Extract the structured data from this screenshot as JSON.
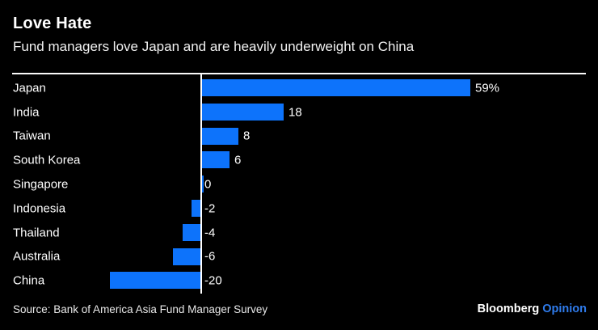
{
  "header": {
    "title": "Love Hate",
    "subtitle": "Fund managers love Japan and are heavily underweight on China"
  },
  "chart_data": {
    "type": "bar",
    "orientation": "horizontal",
    "title": "Love Hate",
    "subtitle": "Fund managers love Japan and are heavily underweight on China",
    "categories": [
      "Japan",
      "India",
      "Taiwan",
      "South Korea",
      "Singapore",
      "Indonesia",
      "Thailand",
      "Australia",
      "China"
    ],
    "values": [
      59,
      18,
      8,
      6,
      0,
      -2,
      -4,
      -6,
      -20
    ],
    "value_labels": [
      "59%",
      "18",
      "8",
      "6",
      "0",
      "-2",
      "-4",
      "-6",
      "-20"
    ],
    "xlim": [
      -20,
      59
    ],
    "unit": "%",
    "grid": false,
    "legend": "none",
    "bar_color": "#0d73fb",
    "axis_color": "#ffffff"
  },
  "footer": {
    "source": "Source: Bank of America Asia Fund Manager Survey",
    "brand": "Bloomberg",
    "brand_suffix": "Opinion",
    "brand_suffix_color": "#2f7ced"
  },
  "colors": {
    "background": "#000000",
    "text": "#ffffff",
    "accent_blue": "#0d73fb"
  }
}
